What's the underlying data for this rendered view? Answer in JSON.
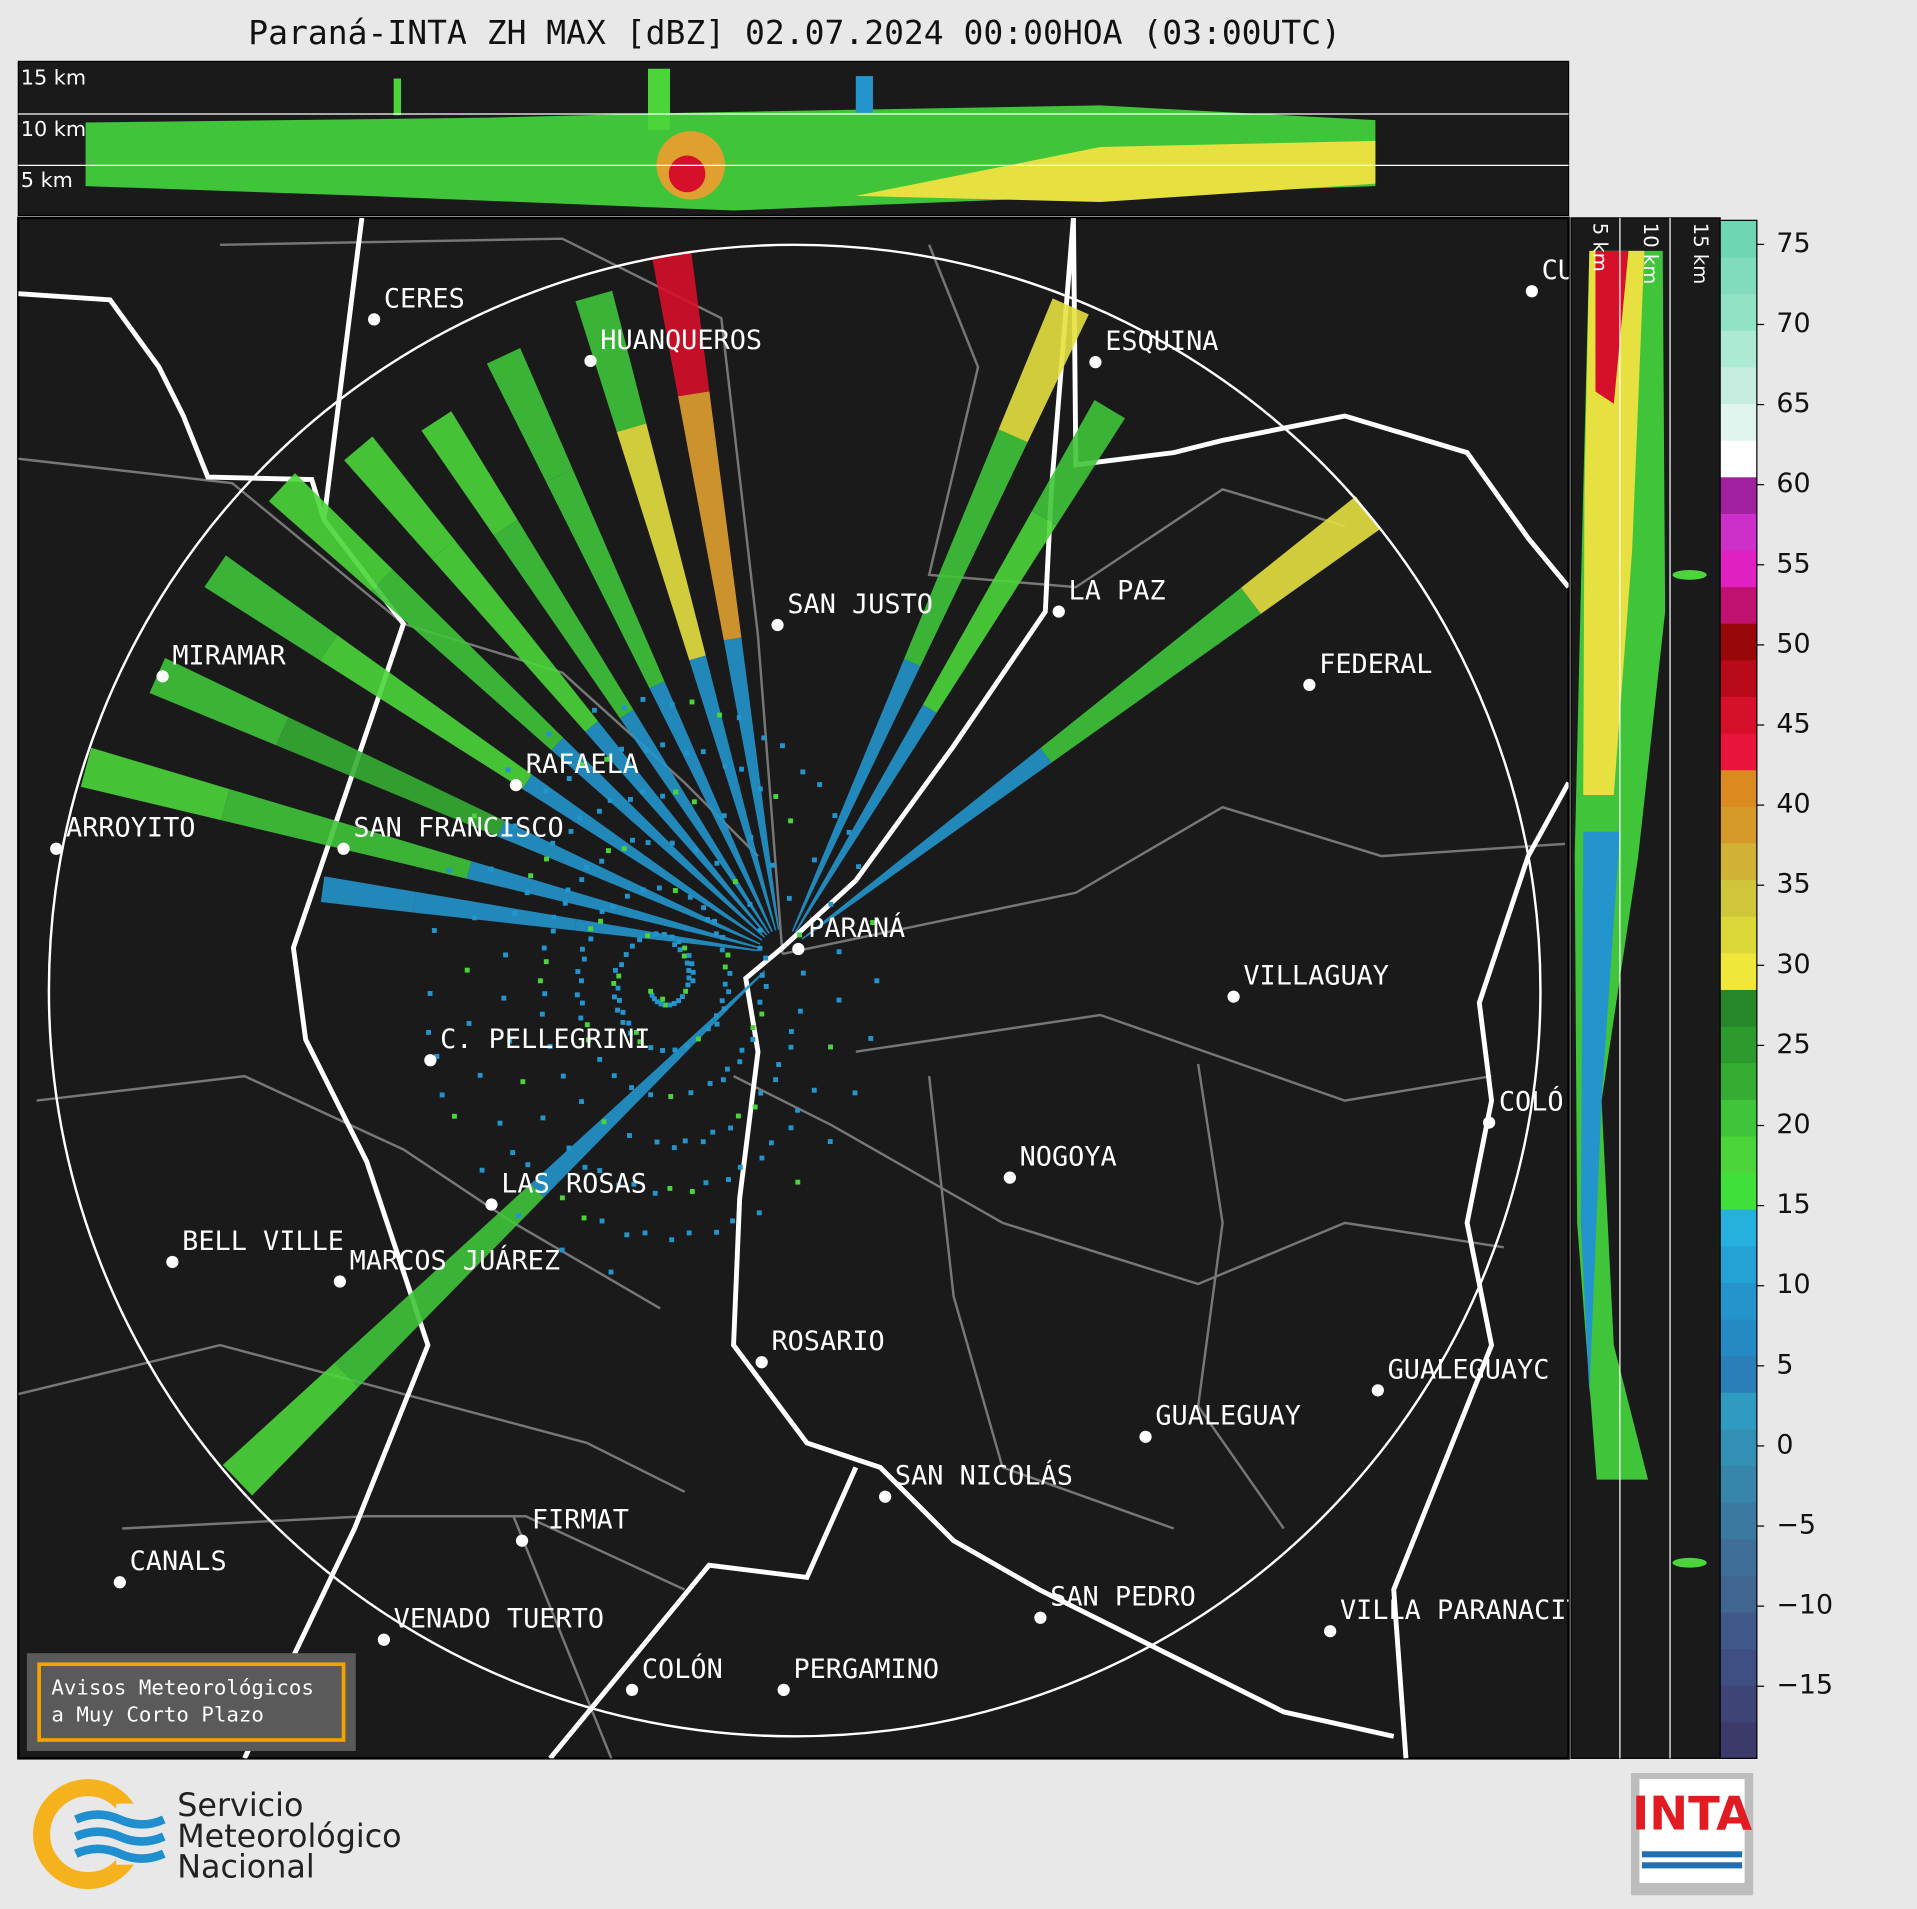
{
  "header": {
    "title": "Paraná-INTA ZH MAX [dBZ] 02.07.2024 00:00HOA (03:00UTC)"
  },
  "top_panel": {
    "height_labels": [
      "15 km",
      "10 km",
      "5 km"
    ]
  },
  "side_panel": {
    "height_labels": [
      "5 km",
      "10 km",
      "15 km"
    ]
  },
  "map": {
    "cities": [
      "CU",
      "CERES",
      "HUANQUEROS",
      "ESQUINA",
      "LA PAZ",
      "SAN JUSTO",
      "MIRAMAR",
      "FEDERAL",
      "RAFAELA",
      "ARROYITO",
      "SAN FRANCISCO",
      "PARANÁ",
      "VILLAGUAY",
      "C. PELLEGRINI",
      "COLÓ",
      "NOGOYA",
      "LAS ROSAS",
      "BELL VILLE",
      "MARCOS JUÁREZ",
      "ROSARIO",
      "GUALEGUAYC",
      "GUALEGUAY",
      "SAN NICOLÁS",
      "FIRMAT",
      "CANALS",
      "SAN PEDRO",
      "VILLA PARANACIT",
      "VENADO TUERTO",
      "COLÓN",
      "PERGAMINO"
    ]
  },
  "notice": {
    "lines": [
      "Avisos Meteorológicos",
      "a Muy Corto Plazo"
    ]
  },
  "colorbar": {
    "clim": [
      -19.5,
      76.5
    ],
    "ticks": [
      75,
      70,
      65,
      60,
      55,
      50,
      45,
      40,
      35,
      30,
      25,
      20,
      15,
      10,
      5,
      0,
      {
        "value": -5,
        "label": "−5"
      },
      {
        "value": -10,
        "label": "−10"
      },
      {
        "value": -15,
        "label": "−15"
      }
    ],
    "colors": [
      "#3b3a6b",
      "#3e4476",
      "#3f4f82",
      "#3f5a8a",
      "#40658f",
      "#3f6f98",
      "#3b7aa0",
      "#3785aa",
      "#3390b5",
      "#2f9bc0",
      "#2a7fb8",
      "#2589c4",
      "#2495cc",
      "#24a2d6",
      "#26b0de",
      "#3fe03a",
      "#4bd53b",
      "#3fc43a",
      "#35ad33",
      "#2d9a2d",
      "#26862a",
      "#efe83a",
      "#dcd83a",
      "#cfc63a",
      "#d0b335",
      "#d69a2a",
      "#db8a20",
      "#e8143c",
      "#d6102a",
      "#b80a1a",
      "#980808",
      "#c01070",
      "#e020c0",
      "#cc30c8",
      "#a020a0",
      "#ffffff",
      "#dff5ee",
      "#c6ede0",
      "#acead4",
      "#92e3c5",
      "#80dcbc",
      "#6fd6b3"
    ]
  },
  "footer": {
    "smn_lines": [
      "Servicio",
      "Meteorológico",
      "Nacional"
    ],
    "inta": "INTA"
  }
}
